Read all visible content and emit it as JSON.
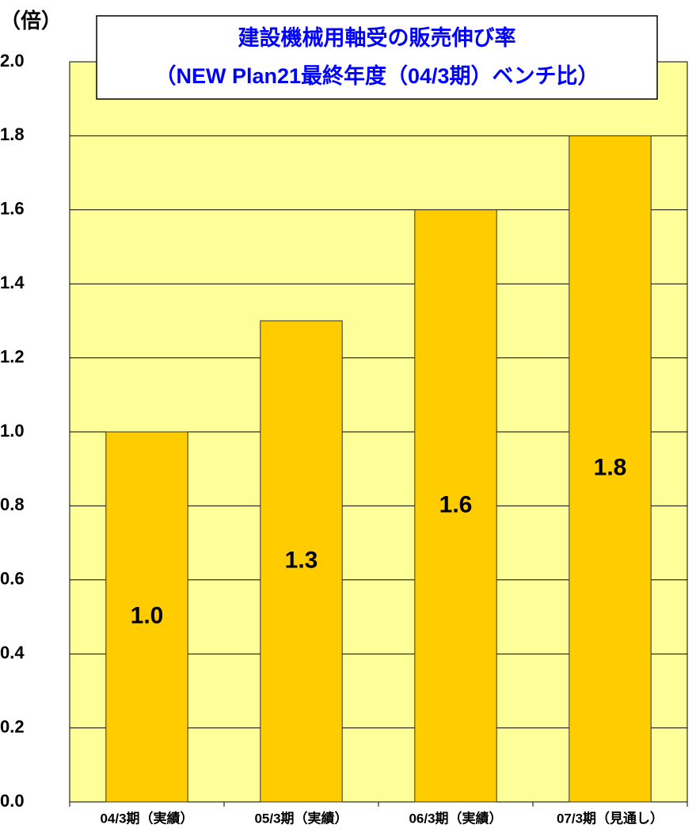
{
  "chart_data": {
    "type": "bar",
    "title": "建設機械用軸受の販売伸び率",
    "subtitle": "（NEW Plan21最終年度（04/3期）ベンチ比）",
    "y_label": "（倍）",
    "categories": [
      "04/3期（実績）",
      "05/3期（実績）",
      "06/3期（実績）",
      "07/3期（見通し）"
    ],
    "values": [
      1.0,
      1.3,
      1.6,
      1.8
    ],
    "value_labels": [
      "1.0",
      "1.3",
      "1.6",
      "1.8"
    ],
    "color": "#ffcc00",
    "ylim": [
      0,
      2
    ],
    "yticks": [
      {
        "value": 0,
        "label": "0.0"
      },
      0.2,
      0.4,
      0.6,
      0.8,
      {
        "value": 1,
        "label": "1.0"
      },
      1.2,
      1.4,
      1.6,
      1.8,
      {
        "value": 2,
        "label": "2.0"
      }
    ],
    "grid": true
  }
}
